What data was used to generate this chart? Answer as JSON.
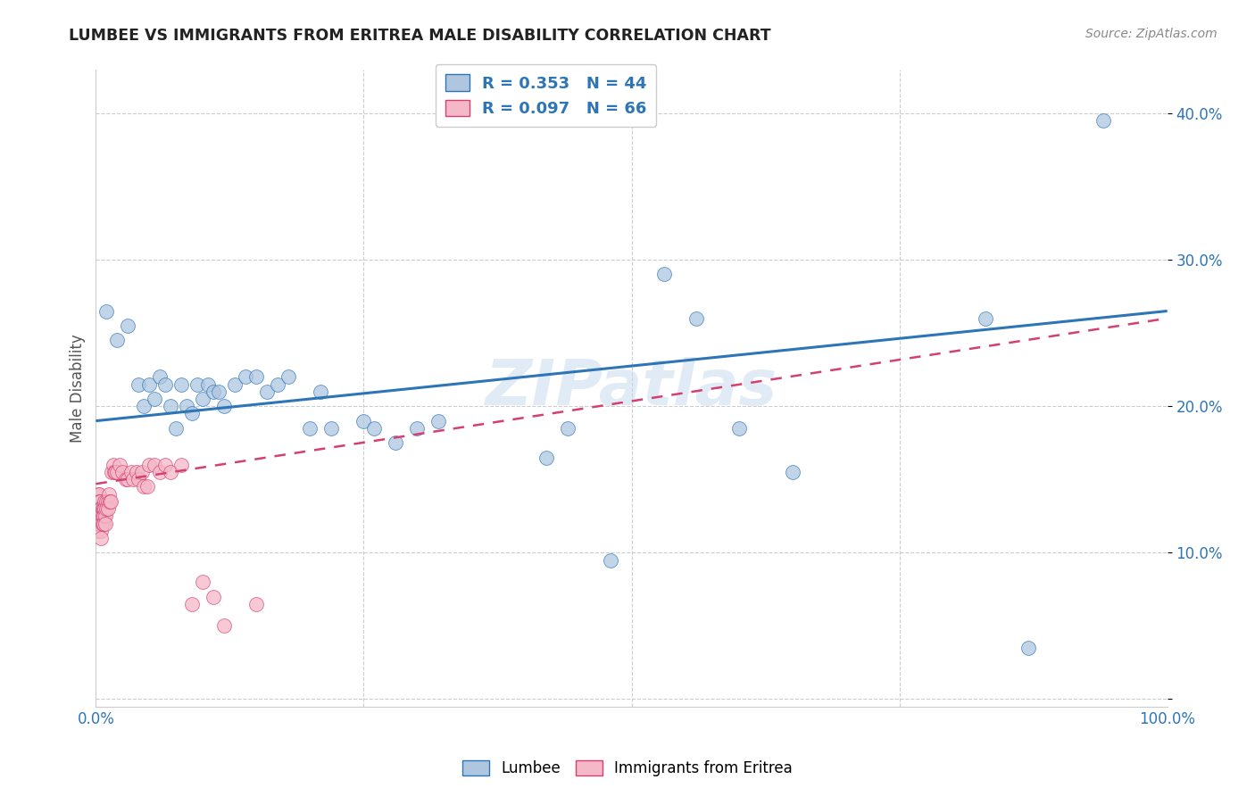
{
  "title": "LUMBEE VS IMMIGRANTS FROM ERITREA MALE DISABILITY CORRELATION CHART",
  "source": "Source: ZipAtlas.com",
  "ylabel": "Male Disability",
  "watermark": "ZIPatlas",
  "lumbee_R": 0.353,
  "lumbee_N": 44,
  "eritrea_R": 0.097,
  "eritrea_N": 66,
  "lumbee_color": "#aec6e0",
  "lumbee_line_color": "#2e75b6",
  "eritrea_color": "#f4b8c8",
  "eritrea_line_color": "#d44070",
  "legend_label_1": "Lumbee",
  "legend_label_2": "Immigrants from Eritrea",
  "ytick_values": [
    0.0,
    0.1,
    0.2,
    0.3,
    0.4
  ],
  "ytick_labels": [
    "",
    "10.0%",
    "20.0%",
    "30.0%",
    "40.0%"
  ],
  "xlim": [
    0.0,
    1.0
  ],
  "ylim": [
    -0.005,
    0.43
  ],
  "lumbee_x": [
    0.01,
    0.02,
    0.03,
    0.04,
    0.045,
    0.05,
    0.055,
    0.06,
    0.065,
    0.07,
    0.075,
    0.08,
    0.085,
    0.09,
    0.095,
    0.1,
    0.105,
    0.11,
    0.115,
    0.12,
    0.13,
    0.14,
    0.15,
    0.16,
    0.17,
    0.18,
    0.2,
    0.21,
    0.22,
    0.25,
    0.26,
    0.28,
    0.3,
    0.32,
    0.42,
    0.44,
    0.48,
    0.53,
    0.56,
    0.6,
    0.65,
    0.83,
    0.87,
    0.94
  ],
  "lumbee_y": [
    0.265,
    0.245,
    0.255,
    0.215,
    0.2,
    0.215,
    0.205,
    0.22,
    0.215,
    0.2,
    0.185,
    0.215,
    0.2,
    0.195,
    0.215,
    0.205,
    0.215,
    0.21,
    0.21,
    0.2,
    0.215,
    0.22,
    0.22,
    0.21,
    0.215,
    0.22,
    0.185,
    0.21,
    0.185,
    0.19,
    0.185,
    0.175,
    0.185,
    0.19,
    0.165,
    0.185,
    0.095,
    0.29,
    0.26,
    0.185,
    0.155,
    0.26,
    0.035,
    0.395
  ],
  "eritrea_x": [
    0.001,
    0.001,
    0.001,
    0.001,
    0.002,
    0.002,
    0.002,
    0.002,
    0.003,
    0.003,
    0.003,
    0.003,
    0.003,
    0.004,
    0.004,
    0.004,
    0.004,
    0.005,
    0.005,
    0.005,
    0.005,
    0.005,
    0.006,
    0.006,
    0.006,
    0.007,
    0.007,
    0.007,
    0.008,
    0.008,
    0.009,
    0.009,
    0.01,
    0.01,
    0.011,
    0.011,
    0.012,
    0.013,
    0.014,
    0.015,
    0.016,
    0.017,
    0.018,
    0.02,
    0.022,
    0.025,
    0.028,
    0.03,
    0.033,
    0.035,
    0.038,
    0.04,
    0.043,
    0.045,
    0.048,
    0.05,
    0.055,
    0.06,
    0.065,
    0.07,
    0.08,
    0.09,
    0.1,
    0.11,
    0.12,
    0.15
  ],
  "eritrea_y": [
    0.13,
    0.125,
    0.12,
    0.115,
    0.14,
    0.135,
    0.13,
    0.125,
    0.14,
    0.135,
    0.13,
    0.125,
    0.12,
    0.135,
    0.13,
    0.125,
    0.12,
    0.13,
    0.125,
    0.12,
    0.115,
    0.11,
    0.13,
    0.125,
    0.12,
    0.13,
    0.125,
    0.12,
    0.135,
    0.13,
    0.125,
    0.12,
    0.135,
    0.13,
    0.135,
    0.13,
    0.14,
    0.135,
    0.135,
    0.155,
    0.16,
    0.155,
    0.155,
    0.155,
    0.16,
    0.155,
    0.15,
    0.15,
    0.155,
    0.15,
    0.155,
    0.15,
    0.155,
    0.145,
    0.145,
    0.16,
    0.16,
    0.155,
    0.16,
    0.155,
    0.16,
    0.065,
    0.08,
    0.07,
    0.05,
    0.065
  ],
  "lumbee_line_start_x": 0.0,
  "lumbee_line_end_x": 1.0,
  "lumbee_line_start_y": 0.19,
  "lumbee_line_end_y": 0.265,
  "eritrea_line_start_x": 0.0,
  "eritrea_line_end_x": 1.0,
  "eritrea_line_start_y": 0.147,
  "eritrea_line_end_y": 0.26
}
